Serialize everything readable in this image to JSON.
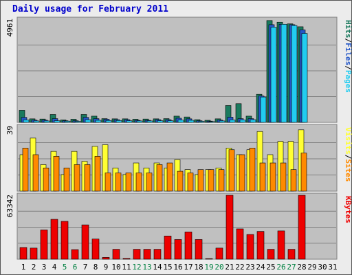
{
  "title": "Daily usage for February 2011",
  "colors": {
    "hits": "#1a7a5e",
    "files": "#2457c8",
    "pages": "#22ccf0",
    "visits": "#ffff33",
    "sites": "#ff8a00",
    "kbytes": "#ee0000",
    "panel_bg": "#c0c0c0",
    "weekend_label": "#008040",
    "weekday_label": "#000000"
  },
  "chart_data": [
    {
      "type": "bar",
      "title": "Daily usage for February 2011",
      "panel": "hits-files-pages",
      "ymax_label": "4961",
      "ylim": [
        0,
        4961
      ],
      "legend": [
        {
          "text": "Pages",
          "color": "#22ccf0"
        },
        {
          "text": "/",
          "color": "#000000"
        },
        {
          "text": "Files",
          "color": "#2457c8"
        },
        {
          "text": "/",
          "color": "#000000"
        },
        {
          "text": "Hits",
          "color": "#1a7a5e"
        }
      ],
      "categories": [
        "1",
        "2",
        "3",
        "4",
        "5",
        "6",
        "7",
        "8",
        "9",
        "10",
        "11",
        "12",
        "13",
        "14",
        "15",
        "16",
        "17",
        "18",
        "19",
        "20",
        "21",
        "22",
        "23",
        "24",
        "25",
        "26",
        "27",
        "28",
        "29",
        "30",
        "31"
      ],
      "series": [
        {
          "name": "Hits",
          "values": [
            580,
            170,
            160,
            380,
            120,
            150,
            380,
            300,
            180,
            170,
            170,
            150,
            160,
            170,
            180,
            300,
            260,
            130,
            100,
            170,
            810,
            900,
            300,
            1350,
            4900,
            4820,
            4740,
            4600,
            0,
            0,
            0
          ]
        },
        {
          "name": "Files",
          "values": [
            240,
            110,
            110,
            180,
            80,
            80,
            240,
            180,
            150,
            130,
            130,
            100,
            100,
            130,
            130,
            200,
            170,
            80,
            60,
            110,
            250,
            180,
            180,
            1270,
            4700,
            4720,
            4700,
            4450,
            0,
            0,
            0
          ]
        },
        {
          "name": "Pages",
          "values": [
            120,
            70,
            70,
            80,
            60,
            50,
            130,
            100,
            90,
            90,
            80,
            70,
            70,
            80,
            80,
            110,
            100,
            50,
            40,
            70,
            120,
            120,
            130,
            1220,
            4580,
            4720,
            4660,
            4280,
            0,
            0,
            0
          ]
        }
      ]
    },
    {
      "type": "bar",
      "panel": "visits-sites",
      "ymax_label": "39",
      "ylim": [
        0,
        39
      ],
      "legend": [
        {
          "text": "Sites",
          "color": "#ff8a00"
        },
        {
          "text": "/",
          "color": "#000000"
        },
        {
          "text": "Visits",
          "color": "#ffff33"
        }
      ],
      "categories": [
        "1",
        "2",
        "3",
        "4",
        "5",
        "6",
        "7",
        "8",
        "9",
        "10",
        "11",
        "12",
        "13",
        "14",
        "15",
        "16",
        "17",
        "18",
        "19",
        "20",
        "21",
        "22",
        "23",
        "24",
        "25",
        "26",
        "27",
        "28",
        "29",
        "30",
        "31"
      ],
      "series": [
        {
          "name": "Visits",
          "values": [
            22,
            32,
            16,
            24,
            10,
            24,
            18,
            27,
            28,
            14,
            10,
            17,
            14,
            17,
            14,
            19,
            13,
            10,
            13,
            14,
            26,
            22,
            25,
            36,
            22,
            30,
            30,
            37,
            0,
            0,
            0
          ]
        },
        {
          "name": "Sites",
          "values": [
            26,
            22,
            14,
            21,
            14,
            16,
            16,
            21,
            11,
            11,
            11,
            11,
            11,
            16,
            17,
            12,
            11,
            13,
            13,
            13,
            25,
            22,
            26,
            17,
            17,
            17,
            13,
            23,
            0,
            0,
            0
          ]
        }
      ]
    },
    {
      "type": "bar",
      "panel": "kbytes",
      "ymax_label": "63342",
      "ylim": [
        0,
        63342
      ],
      "legend": [
        {
          "text": "KBytes",
          "color": "#ee0000"
        }
      ],
      "categories": [
        "1",
        "2",
        "3",
        "4",
        "5",
        "6",
        "7",
        "8",
        "9",
        "10",
        "11",
        "12",
        "13",
        "14",
        "15",
        "16",
        "17",
        "18",
        "19",
        "20",
        "21",
        "22",
        "23",
        "24",
        "25",
        "26",
        "27",
        "28",
        "29",
        "30",
        "31"
      ],
      "series": [
        {
          "name": "KBytes",
          "values": [
            11600,
            11000,
            29000,
            39500,
            37500,
            9500,
            34000,
            20000,
            1800,
            9800,
            800,
            9800,
            9800,
            9800,
            23000,
            19500,
            27000,
            19500,
            600,
            11000,
            63342,
            30000,
            24500,
            27500,
            9800,
            28000,
            9800,
            63342,
            0,
            0,
            0
          ]
        }
      ]
    }
  ]
}
